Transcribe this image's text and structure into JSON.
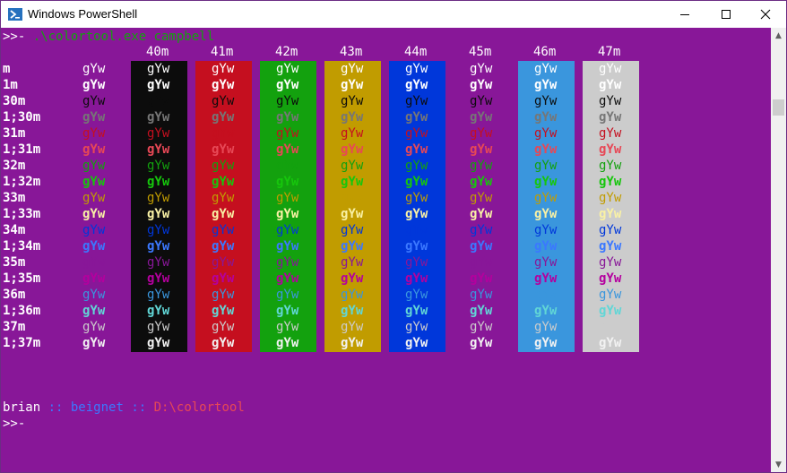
{
  "window": {
    "title": "Windows PowerShell"
  },
  "command": {
    "prompt": ">>- ",
    "text": ".\\colortool.exe campbell"
  },
  "headers": [
    "40m",
    "41m",
    "42m",
    "43m",
    "44m",
    "45m",
    "46m",
    "47m"
  ],
  "sample_text": "gYw",
  "rows": [
    "m",
    "1m",
    "30m",
    "1;30m",
    "31m",
    "1;31m",
    "32m",
    "1;32m",
    "33m",
    "1;33m",
    "34m",
    "1;34m",
    "35m",
    "1;35m",
    "36m",
    "1;36m",
    "37m",
    "1;37m"
  ],
  "colors": {
    "background": "#881798",
    "bg_columns": [
      "#0c0c0c",
      "#c50f1f",
      "#13a10e",
      "#c19c00",
      "#0037da",
      "#881798",
      "#3a96dd",
      "#cccccc"
    ],
    "fg_rows": [
      "#ffffff",
      "#ffffff",
      "#0c0c0c",
      "#767676",
      "#c50f1f",
      "#e74856",
      "#13a10e",
      "#16c60c",
      "#c19c00",
      "#f9f1a5",
      "#0037da",
      "#3b78ff",
      "#881798",
      "#b4009e",
      "#3a96dd",
      "#61d6d6",
      "#cccccc",
      "#f2f2f2"
    ]
  },
  "status": {
    "user": "brian",
    "sep1": " :: ",
    "host": "beignet",
    "sep2": " :: ",
    "path": "D:\\colortool"
  },
  "next_prompt": ">>-"
}
